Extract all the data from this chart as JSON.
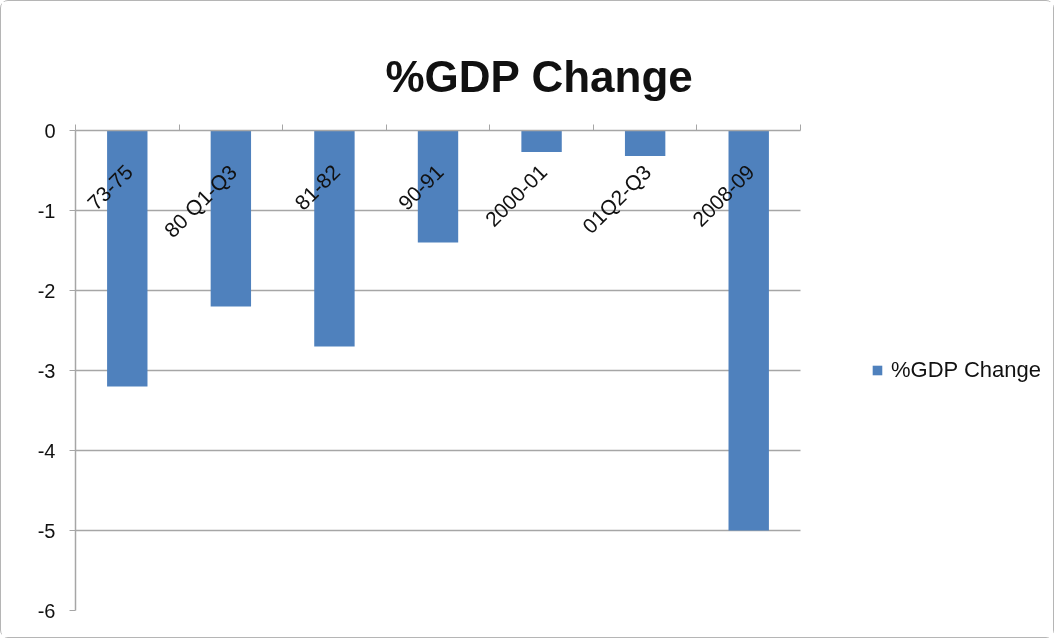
{
  "chart_data": {
    "type": "bar",
    "title": "%GDP Change",
    "categories": [
      "73-75",
      "80 Q1-Q3",
      "81-82",
      "90-91",
      "2000-01",
      "01Q2-Q3",
      "2008-09"
    ],
    "series": [
      {
        "name": "%GDP Change",
        "color": "#4f81bd",
        "values": [
          -3.2,
          -2.2,
          -2.7,
          -1.4,
          -0.27,
          -0.32,
          -5.0
        ]
      }
    ],
    "ylim": [
      -6,
      0
    ],
    "yticks": [
      -6,
      -5,
      -4,
      -3,
      -2,
      -1,
      0
    ],
    "grid": "y",
    "legend": "right"
  }
}
